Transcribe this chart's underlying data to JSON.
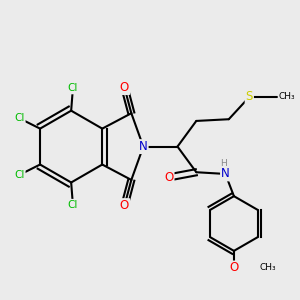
{
  "bg_color": "#ebebeb",
  "bond_color": "#000000",
  "bond_width": 1.5,
  "atom_colors": {
    "C": "#000000",
    "N": "#0000cc",
    "O": "#ff0000",
    "Cl": "#00bb00",
    "S": "#cccc00",
    "H": "#888888"
  },
  "font_size": 7.5
}
